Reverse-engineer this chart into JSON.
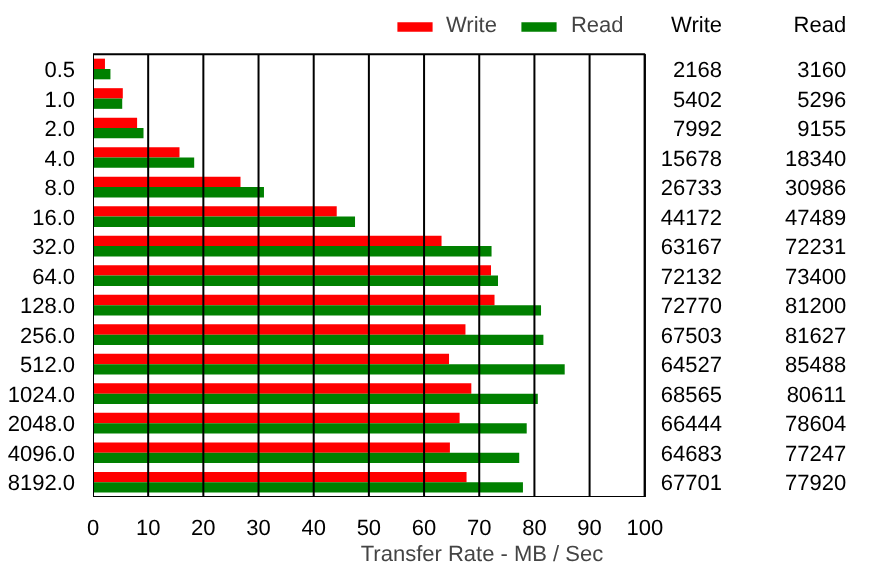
{
  "chart_data": {
    "type": "bar",
    "orientation": "horizontal",
    "xlabel": "Transfer Rate - MB / Sec",
    "categories": [
      "0.5",
      "1.0",
      "2.0",
      "4.0",
      "8.0",
      "16.0",
      "32.0",
      "64.0",
      "128.0",
      "256.0",
      "512.0",
      "1024.0",
      "2048.0",
      "4096.0",
      "8192.0"
    ],
    "series": [
      {
        "name": "Write",
        "color": "#ff0000",
        "values": [
          2.168,
          5.402,
          7.992,
          15.678,
          26.733,
          44.172,
          63.167,
          72.132,
          72.77,
          67.503,
          64.527,
          68.565,
          66.444,
          64.683,
          67.701
        ]
      },
      {
        "name": "Read",
        "color": "#008000",
        "values": [
          3.16,
          5.296,
          9.155,
          18.34,
          30.986,
          47.489,
          72.231,
          73.4,
          81.2,
          81.627,
          85.488,
          80.611,
          78.604,
          77.247,
          77.92
        ]
      }
    ],
    "annotations": [
      "Write",
      "Read",
      "2168",
      "3160",
      "5402",
      "5296",
      "7992",
      "9155",
      "15678",
      "18340",
      "26733",
      "30986",
      "44172",
      "47489",
      "63167",
      "72231",
      "72132",
      "73400",
      "72770",
      "81200",
      "67503",
      "81627",
      "64527",
      "85488",
      "68565",
      "80611",
      "66444",
      "78604",
      "64683",
      "77247",
      "67701",
      "77920"
    ],
    "xlim": [
      0,
      100
    ],
    "xticks": [
      0,
      10,
      20,
      30,
      40,
      50,
      60,
      70,
      80,
      90,
      100
    ],
    "grid": "x",
    "legend": "top"
  }
}
